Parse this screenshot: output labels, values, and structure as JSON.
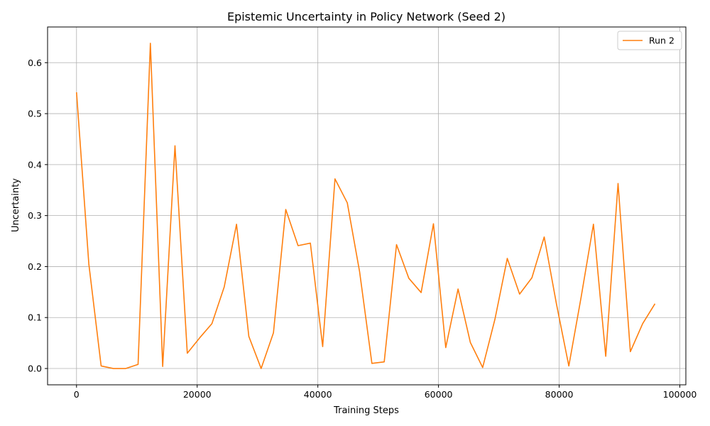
{
  "chart_data": {
    "type": "line",
    "title": "Epistemic Uncertainty in Policy Network (Seed 2)",
    "xlabel": "Training Steps",
    "ylabel": "Uncertainty",
    "xlim": [
      -4800,
      101000
    ],
    "ylim": [
      -0.032,
      0.67
    ],
    "xticks": [
      0,
      20000,
      40000,
      60000,
      80000,
      100000
    ],
    "yticks": [
      0.0,
      0.1,
      0.2,
      0.3,
      0.4,
      0.5,
      0.6
    ],
    "xtick_labels": [
      "0",
      "20000",
      "40000",
      "60000",
      "80000",
      "100000"
    ],
    "ytick_labels": [
      "0.0",
      "0.1",
      "0.2",
      "0.3",
      "0.4",
      "0.5",
      "0.6"
    ],
    "grid": true,
    "legend": "top-right",
    "series": [
      {
        "name": "Run 2",
        "color": "#ff7f0e",
        "x": [
          0,
          2040,
          4080,
          6120,
          8160,
          10200,
          12240,
          14280,
          16320,
          18360,
          20400,
          22440,
          24480,
          26520,
          28560,
          30600,
          32640,
          34680,
          36720,
          38760,
          40800,
          42840,
          44880,
          46920,
          48960,
          51000,
          53040,
          55080,
          57120,
          59160,
          61200,
          63240,
          65280,
          67320,
          69360,
          71400,
          73440,
          75480,
          77520,
          79560,
          81600,
          83640,
          85680,
          87720,
          89760,
          91800,
          93840,
          95880
        ],
        "y": [
          0.542,
          0.205,
          0.005,
          0.0,
          0.0,
          0.008,
          0.638,
          0.004,
          0.437,
          0.03,
          0.06,
          0.088,
          0.16,
          0.283,
          0.063,
          0.0,
          0.07,
          0.312,
          0.241,
          0.246,
          0.043,
          0.372,
          0.325,
          0.19,
          0.01,
          0.013,
          0.243,
          0.177,
          0.149,
          0.284,
          0.041,
          0.156,
          0.051,
          0.002,
          0.097,
          0.216,
          0.146,
          0.178,
          0.258,
          0.126,
          0.005,
          0.14,
          0.283,
          0.024,
          0.363,
          0.033,
          0.088,
          0.127
        ]
      }
    ]
  }
}
